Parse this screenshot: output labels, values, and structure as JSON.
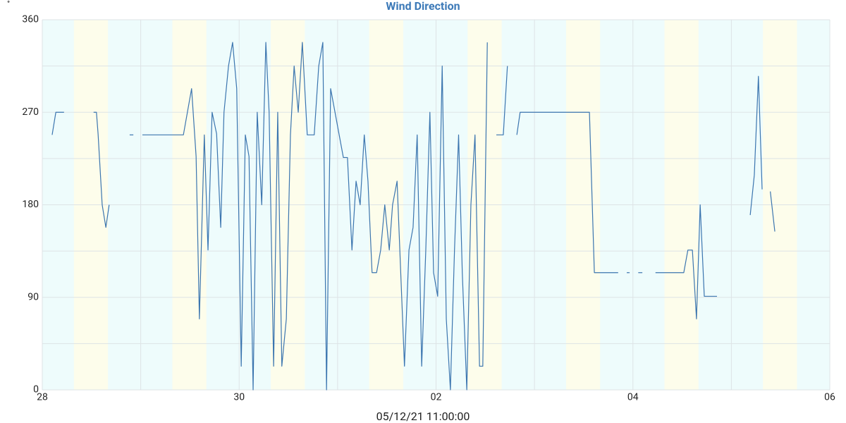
{
  "chart_data": {
    "type": "line",
    "title": "Wind Direction",
    "y_label": "°",
    "x_label": "05/12/21 11:00:00",
    "xlim": [
      0,
      192
    ],
    "xticks": [
      {
        "value": 0,
        "label": "28"
      },
      {
        "value": 48,
        "label": "30"
      },
      {
        "value": 96,
        "label": "02"
      },
      {
        "value": 144,
        "label": "04"
      },
      {
        "value": 192,
        "label": "06"
      }
    ],
    "xgrid": [
      24,
      72,
      120,
      168
    ],
    "ylim": [
      0,
      360
    ],
    "yticks": [
      0,
      90,
      180,
      270,
      360
    ],
    "ygrid": [
      45,
      135,
      225,
      315
    ],
    "grid": true,
    "background_color": "#eefcfc",
    "band_color": "#fdfdeb",
    "bands": [
      [
        7.7,
        16
      ],
      [
        31.7,
        40
      ],
      [
        55.7,
        64
      ],
      [
        79.7,
        88
      ],
      [
        103.7,
        112
      ],
      [
        127.7,
        136
      ],
      [
        151.7,
        160
      ],
      [
        175.7,
        184
      ]
    ],
    "x": [
      2.4,
      3.3,
      5.3,
      9,
      12.5,
      13.2,
      13.6,
      14.6,
      15.5,
      16.3,
      19,
      21.3,
      22.2,
      23.3,
      24.4,
      34.4,
      36.4,
      37.5,
      38.3,
      39.5,
      40.4,
      41.4,
      42.5,
      43.5,
      44.3,
      45.4,
      46.4,
      47.4,
      48.5,
      49.5,
      50.4,
      51.4,
      52.4,
      53.5,
      54.5,
      55.3,
      56.4,
      57.4,
      58.4,
      59.5,
      60.5,
      61.4,
      62.4,
      63.4,
      64.6,
      66.3,
      67.4,
      68.4,
      69.3,
      70.3,
      73.4,
      74.4,
      75.5,
      76.5,
      77.5,
      78.5,
      79.4,
      80.4,
      81.5,
      82.5,
      83.5,
      84.6,
      85.4,
      86.5,
      88.3,
      89.4,
      90.4,
      91.4,
      92.5,
      93.5,
      94.5,
      95.4,
      96.4,
      97.5,
      98.5,
      99.5,
      100.5,
      101.5,
      102.4,
      103.5,
      104.5,
      105.5,
      106.6,
      107.4,
      108.5,
      109.6,
      110.7,
      112.4,
      113.4,
      114.5,
      115.7,
      116.5,
      133.4,
      134.6,
      140.4,
      141.4,
      142.5,
      143.2,
      144.2,
      145.3,
      146.3,
      148,
      149.5,
      156.4,
      157.4,
      158.5,
      159.5,
      160.4,
      161.4,
      164.5,
      168,
      172.6,
      173.6,
      174.6,
      175.5,
      176.5,
      177.5,
      178.6
    ],
    "series": [
      {
        "name": "Wind Direction",
        "color": "#3b75af",
        "values": [
          248,
          270,
          270,
          null,
          270,
          270,
          249,
          180,
          158,
          180,
          null,
          248,
          248,
          null,
          248,
          248,
          293,
          227,
          69,
          248,
          136,
          270,
          249,
          158,
          270,
          315,
          338,
          293,
          23,
          248,
          227,
          0,
          270,
          180,
          338,
          270,
          23,
          270,
          23,
          69,
          248,
          315,
          270,
          338,
          248,
          248,
          315,
          338,
          0,
          293,
          226,
          226,
          136,
          203,
          180,
          248,
          203,
          114,
          114,
          136,
          180,
          136,
          180,
          203,
          23,
          136,
          158,
          248,
          23,
          136,
          270,
          114,
          91,
          315,
          69,
          0,
          136,
          248,
          114,
          0,
          180,
          248,
          23,
          23,
          338,
          null,
          248,
          248,
          315,
          null,
          248,
          270,
          270,
          114,
          114,
          null,
          114,
          114,
          null,
          114,
          114,
          null,
          114,
          114,
          136,
          136,
          69,
          180,
          91,
          91,
          null,
          170,
          209,
          305,
          195,
          null,
          193,
          154
        ]
      }
    ]
  }
}
